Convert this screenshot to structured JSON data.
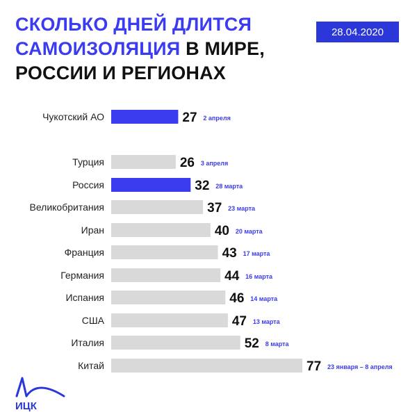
{
  "header": {
    "title_line1": "СКОЛЬКО ДНЕЙ ДЛИТСЯ",
    "title_line2_highlight": "САМОИЗОЛЯЦИЯ",
    "title_line2_rest": " В МИРЕ,",
    "title_line3": "РОССИИ И РЕГИОНАХ",
    "date": "28.04.2020"
  },
  "logo": {
    "text": "ИЦК"
  },
  "colors": {
    "highlight": "#3b3bf0",
    "bar_gray": "#d9d9d9",
    "date_text": "#3b3bf0",
    "badge": "#2b37d8"
  },
  "chart_data": {
    "type": "bar",
    "orientation": "horizontal",
    "categories": [
      "Чукотский АО",
      "Турция",
      "Россия",
      "Великобритания",
      "Иран",
      "Франция",
      "Германия",
      "Испания",
      "США",
      "Италия",
      "Китай"
    ],
    "values": [
      27,
      26,
      32,
      37,
      40,
      43,
      44,
      46,
      47,
      52,
      77
    ],
    "value_labels": [
      "27",
      "26",
      "32",
      "37",
      "40",
      "43",
      "44",
      "46",
      "47",
      "52",
      "77"
    ],
    "start_dates": [
      "2 апреля",
      "3 апреля",
      "28 марта",
      "23 марта",
      "20 марта",
      "17 марта",
      "16 марта",
      "14 марта",
      "13 марта",
      "8 марта",
      "23 января – 8 апреля"
    ],
    "highlighted": [
      true,
      false,
      true,
      false,
      false,
      false,
      false,
      false,
      false,
      false,
      false
    ],
    "title": "СКОЛЬКО ДНЕЙ ДЛИТСЯ САМОИЗОЛЯЦИЯ В МИРЕ, РОССИИ И РЕГИОНАХ",
    "xlabel": "",
    "ylabel": "",
    "grid": false
  }
}
